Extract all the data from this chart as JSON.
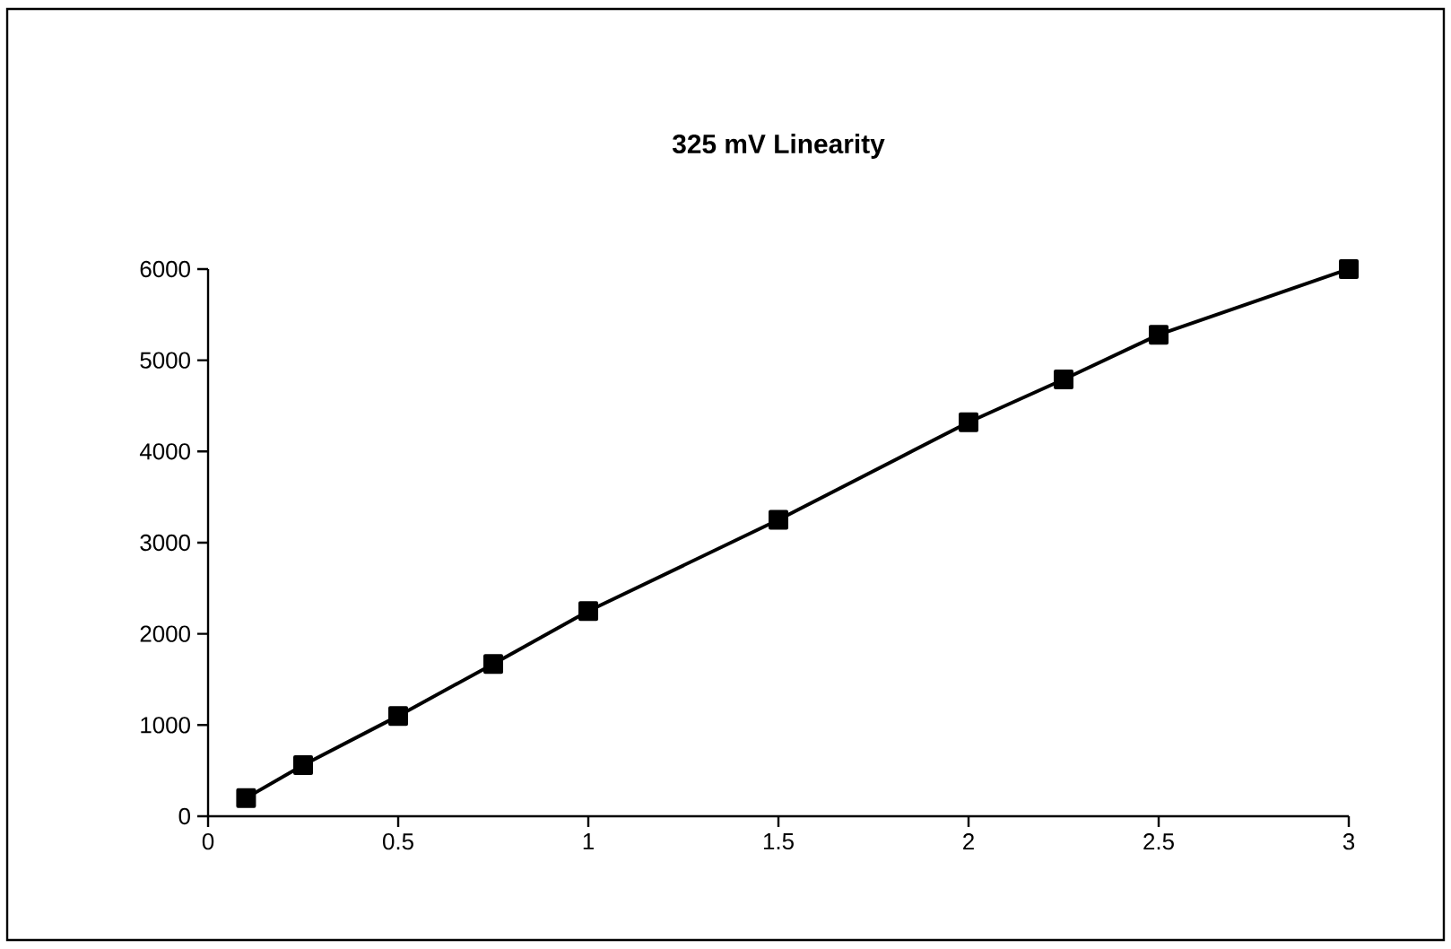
{
  "chart_data": {
    "type": "line",
    "title": "325   mV   Linearity",
    "x": [
      0.1,
      0.25,
      0.5,
      0.75,
      1,
      1.5,
      2,
      2.25,
      2.5,
      3
    ],
    "series": [
      {
        "color": "#000000",
        "values": [
          200,
          560,
          1100,
          1670,
          2250,
          3250,
          4320,
          4790,
          5280,
          6000
        ]
      }
    ],
    "xlim": [
      0,
      3
    ],
    "ylim": [
      0,
      6000
    ],
    "xticks": [
      0,
      0.5,
      1,
      1.5,
      2,
      2.5,
      3
    ],
    "yticks": [
      0,
      1000,
      2000,
      3000,
      4000,
      5000,
      6000
    ],
    "marker": "square",
    "line_style": "solid",
    "grid": false
  }
}
